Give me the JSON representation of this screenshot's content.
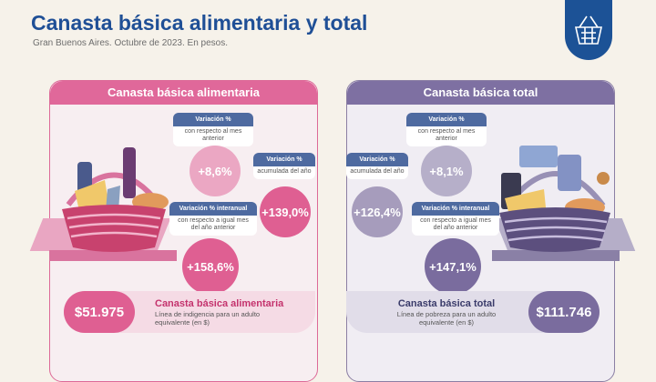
{
  "header": {
    "title": "Canasta básica alimentaria y total",
    "subtitle": "Gran Buenos Aires. Octubre de 2023. En pesos."
  },
  "colors": {
    "pink": "#e0689a",
    "purple": "#7e70a2",
    "navy": "#1c5296",
    "light_pink": "#e9a6c2",
    "lavender": "#b5aec8"
  },
  "left": {
    "panel_title": "Canasta básica alimentaria",
    "mensual": {
      "label": "Variación %",
      "desc": "con respecto al mes anterior",
      "value": "+8,6%"
    },
    "acumulada": {
      "label": "Variación %",
      "desc": "acumulada del año",
      "value": "+139,0%"
    },
    "interanual": {
      "label": "Variación % interanual",
      "desc": "con respecto a igual mes del año anterior",
      "value": "+158,6%"
    },
    "price": "$51.975",
    "footer_title": "Canasta básica alimentaria",
    "footer_desc": "Línea de indigencia para un adulto equivalente (en $)"
  },
  "right": {
    "panel_title": "Canasta básica total",
    "mensual": {
      "label": "Variación %",
      "desc": "con respecto al mes anterior",
      "value": "+8,1%"
    },
    "acumulada": {
      "label": "Variación %",
      "desc": "acumulada del año",
      "value": "+126,4%"
    },
    "interanual": {
      "label": "Variación % interanual",
      "desc": "con respecto a igual mes del año anterior",
      "value": "+147,1%"
    },
    "price": "$111.746",
    "footer_title": "Canasta básica total",
    "footer_desc": "Línea de pobreza para un adulto equivalente (en $)"
  },
  "icons": {
    "logo": "shopping-basket-icon",
    "left_basket": "food-basket-icon",
    "right_basket": "total-basket-icon"
  }
}
